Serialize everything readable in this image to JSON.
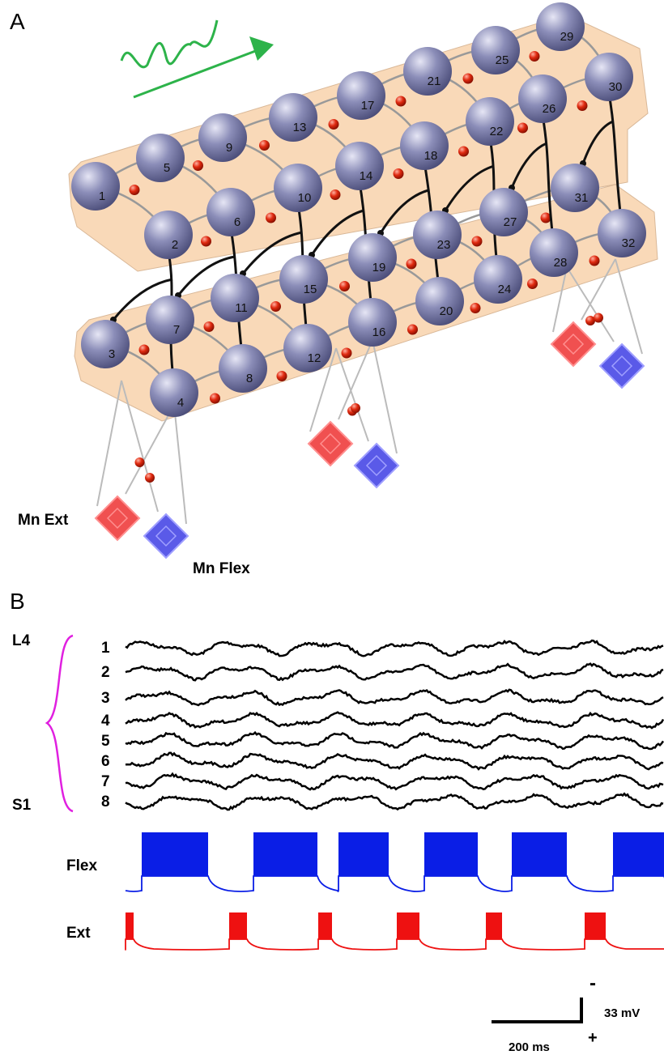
{
  "panel_a": {
    "label": "A",
    "nodes": [
      "1",
      "2",
      "3",
      "4",
      "5",
      "6",
      "7",
      "8",
      "9",
      "10",
      "11",
      "12",
      "13",
      "14",
      "15",
      "16",
      "17",
      "18",
      "19",
      "20",
      "21",
      "22",
      "23",
      "24",
      "25",
      "26",
      "27",
      "28",
      "29",
      "30",
      "31",
      "32"
    ],
    "mn_ext": "Mn Ext",
    "mn_flex": "Mn Flex"
  },
  "panel_b": {
    "label": "B",
    "top_label": "L4",
    "bottom_label": "S1",
    "traces": [
      "1",
      "2",
      "3",
      "4",
      "5",
      "6",
      "7",
      "8"
    ],
    "flex": "Flex",
    "ext": "Ext",
    "scale_time": "200 ms",
    "scale_voltage": "33 mV",
    "minus": "-",
    "plus": "+"
  }
}
